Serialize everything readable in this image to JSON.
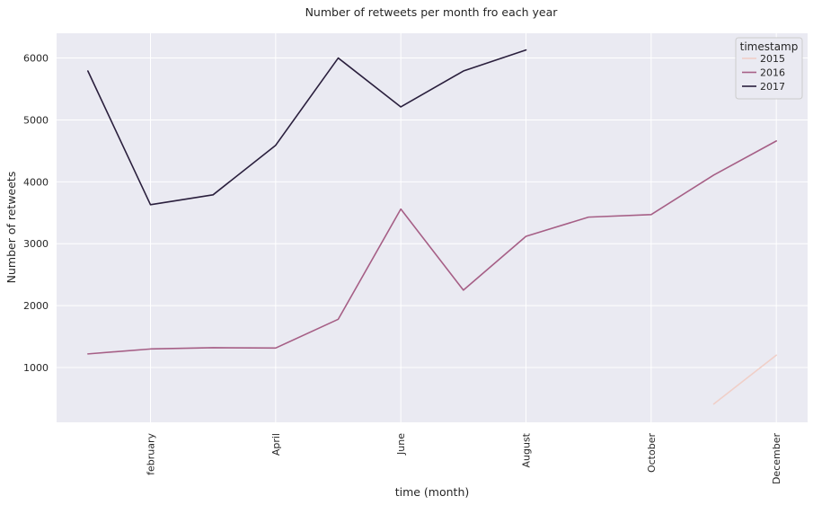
{
  "chart_data": {
    "type": "line",
    "title": "Number of retweets per month fro each year",
    "xlabel": "time (month)",
    "ylabel": "Number of retweets",
    "x_range": [
      0.5,
      12.5
    ],
    "ylim": [
      115,
      6400
    ],
    "x_ticks": [
      {
        "month": 2,
        "label": "february"
      },
      {
        "month": 4,
        "label": "April"
      },
      {
        "month": 6,
        "label": "June"
      },
      {
        "month": 8,
        "label": "August"
      },
      {
        "month": 10,
        "label": "October"
      },
      {
        "month": 12,
        "label": "December"
      }
    ],
    "y_ticks": [
      1000,
      2000,
      3000,
      4000,
      5000,
      6000
    ],
    "grid": true,
    "legend": {
      "title": "timestamp",
      "placement": "top-right"
    },
    "series": [
      {
        "name": "2015",
        "color": "#f0cfc8",
        "x": [
          11,
          12
        ],
        "y": [
          410,
          1200
        ]
      },
      {
        "name": "2016",
        "color": "#a65f86",
        "x": [
          1,
          2,
          3,
          4,
          5,
          6,
          7,
          8,
          9,
          10,
          11,
          12
        ],
        "y": [
          1220,
          1300,
          1320,
          1315,
          1780,
          3560,
          2250,
          3120,
          3430,
          3470,
          4110,
          4660
        ]
      },
      {
        "name": "2017",
        "color": "#2a1f3d",
        "x": [
          1,
          2,
          3,
          4,
          5,
          6,
          7,
          8
        ],
        "y": [
          5790,
          3630,
          3790,
          4590,
          6000,
          5210,
          5790,
          6130
        ]
      }
    ]
  }
}
